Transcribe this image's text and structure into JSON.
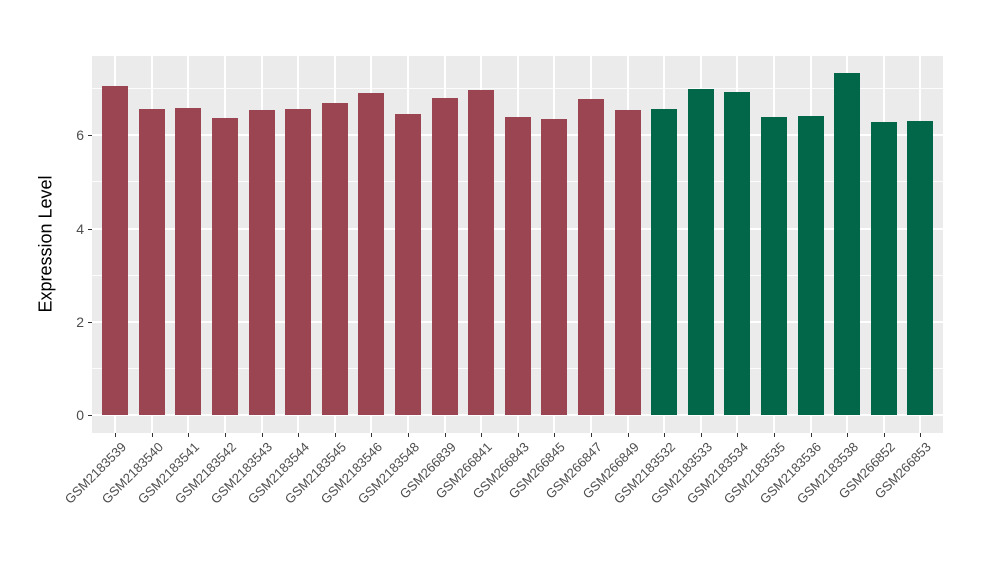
{
  "chart_data": {
    "type": "bar",
    "title": "",
    "xlabel": "",
    "ylabel": "Expression Level",
    "categories": [
      "GSM2183539",
      "GSM2183540",
      "GSM2183541",
      "GSM2183542",
      "GSM2183543",
      "GSM2183544",
      "GSM2183545",
      "GSM2183546",
      "GSM2183548",
      "GSM266839",
      "GSM266841",
      "GSM266843",
      "GSM266845",
      "GSM266847",
      "GSM266849",
      "GSM2183532",
      "GSM2183533",
      "GSM2183534",
      "GSM2183535",
      "GSM2183536",
      "GSM2183538",
      "GSM266852",
      "GSM266853"
    ],
    "values": [
      7.05,
      6.57,
      6.58,
      6.37,
      6.55,
      6.57,
      6.7,
      6.9,
      6.46,
      6.81,
      6.97,
      6.4,
      6.35,
      6.78,
      6.55,
      6.57,
      6.99,
      6.92,
      6.4,
      6.41,
      7.33,
      6.28,
      6.31
    ],
    "bar_groups": [
      "maroon",
      "maroon",
      "maroon",
      "maroon",
      "maroon",
      "maroon",
      "maroon",
      "maroon",
      "maroon",
      "maroon",
      "maroon",
      "maroon",
      "maroon",
      "maroon",
      "maroon",
      "green",
      "green",
      "green",
      "green",
      "green",
      "green",
      "green",
      "green"
    ],
    "group_colors": {
      "maroon": "#9B4553",
      "green": "#026748"
    },
    "yticks": [
      0,
      2,
      4,
      6
    ],
    "yticks_minor": [
      1,
      3,
      5,
      7
    ],
    "ylim": [
      -0.38,
      7.7
    ],
    "grid": true,
    "legend_position": "none",
    "panel_background": "#EBEBEB",
    "grid_color": "#FFFFFF",
    "tick_color": "#333333",
    "tick_label_color": "#4D4D4D"
  }
}
